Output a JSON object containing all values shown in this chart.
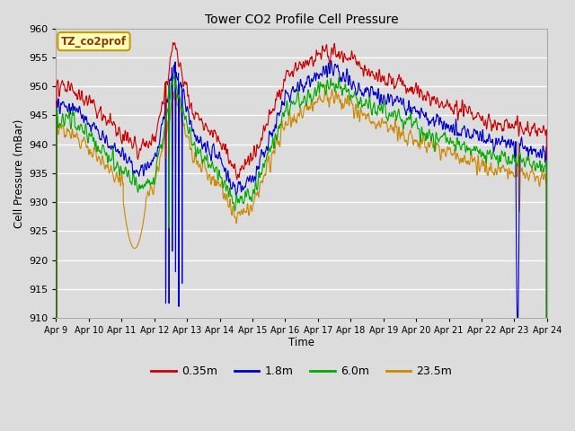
{
  "title": "Tower CO2 Profile Cell Pressure",
  "xlabel": "Time",
  "ylabel": "Cell Pressure (mBar)",
  "ylim": [
    910,
    960
  ],
  "annotation_text": "TZ_co2prof",
  "legend_labels": [
    "0.35m",
    "1.8m",
    "6.0m",
    "23.5m"
  ],
  "legend_colors": [
    "#cc0000",
    "#0000cc",
    "#00aa00",
    "#cc8800"
  ],
  "line_colors": [
    "#cc0000",
    "#0000cc",
    "#00aa00",
    "#cc8800"
  ],
  "background_color": "#dcdcdc",
  "plot_bg_color": "#dcdcdc",
  "x_tick_labels": [
    "Apr 9",
    "Apr 10",
    "Apr 11",
    "Apr 12",
    "Apr 13",
    "Apr 14",
    "Apr 15",
    "Apr 16",
    "Apr 17",
    "Apr 18",
    "Apr 19",
    "Apr 20",
    "Apr 21",
    "Apr 22",
    "Apr 23",
    "Apr 24"
  ],
  "x_tick_positions": [
    0,
    1,
    2,
    3,
    4,
    5,
    6,
    7,
    8,
    9,
    10,
    11,
    12,
    13,
    14,
    15
  ],
  "yticks": [
    910,
    915,
    920,
    925,
    930,
    935,
    940,
    945,
    950,
    955,
    960
  ]
}
